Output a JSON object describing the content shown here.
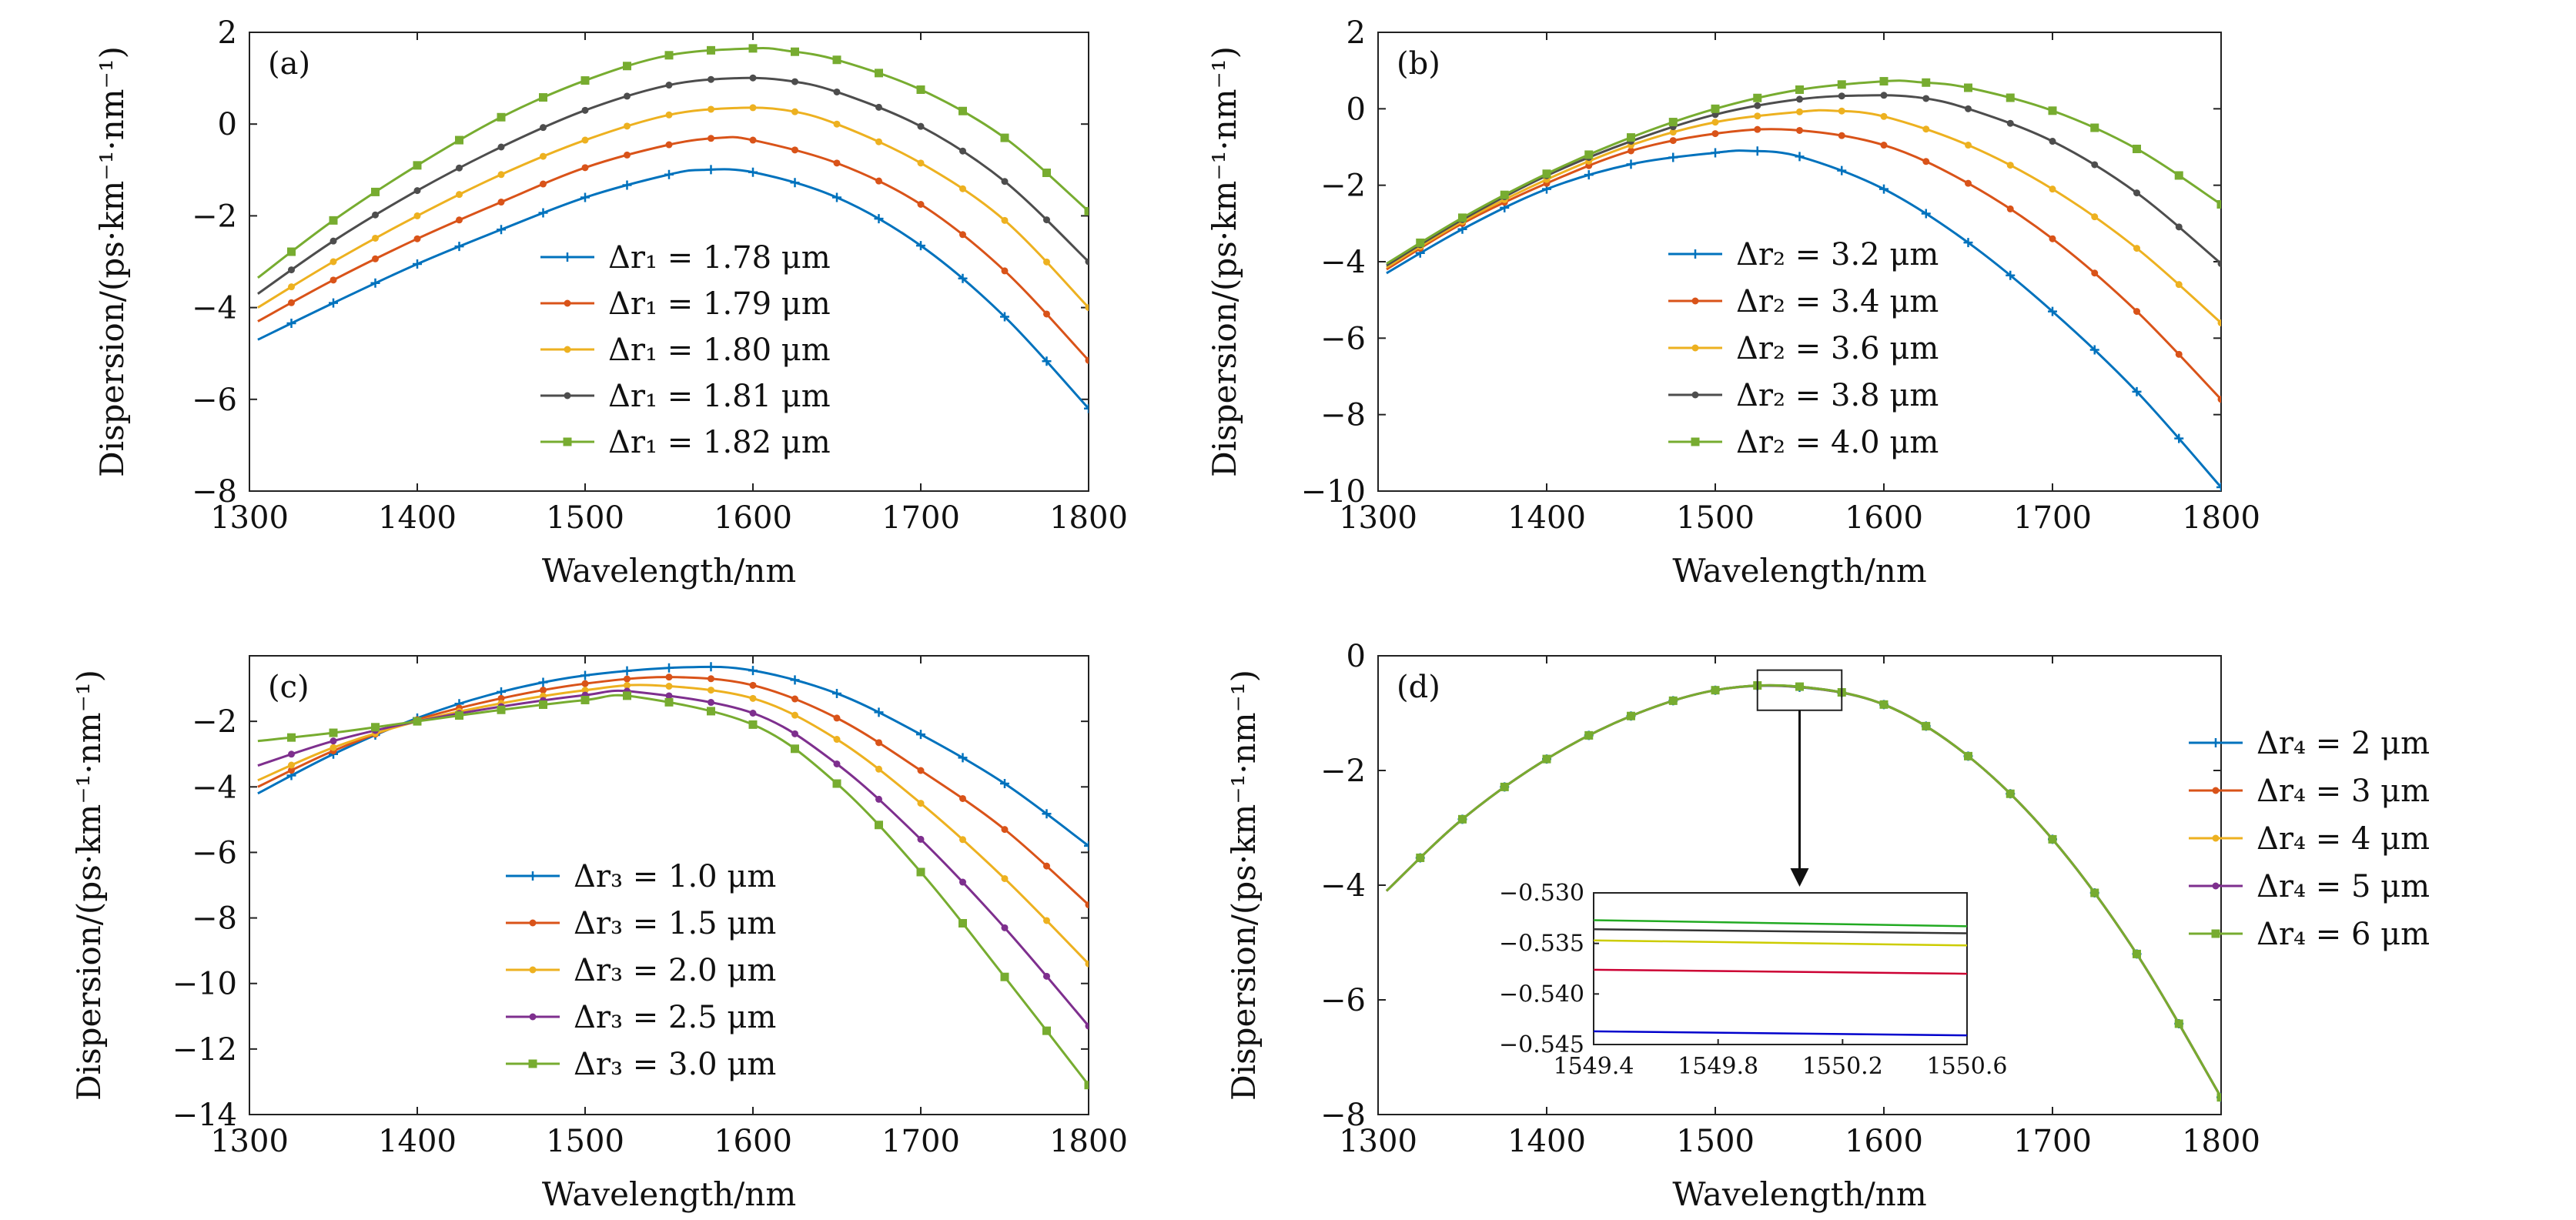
{
  "figure": {
    "background": "#ffffff"
  },
  "chart_data": [
    {
      "type": "line",
      "panel": "(a)",
      "xlabel": "Wavelength/nm",
      "ylabel": "Dispersion/(ps·km⁻¹·nm⁻¹)",
      "xlim": [
        1300,
        1800
      ],
      "ylim": [
        -8,
        2
      ],
      "xticks": [
        1300,
        1400,
        1500,
        1600,
        1700,
        1800
      ],
      "yticks": [
        -8,
        -6,
        -4,
        -2,
        0,
        2
      ],
      "ytick_labels": [
        "−8",
        "−6",
        "−4",
        "−2",
        "0",
        "2"
      ],
      "legend_position": "lower-center",
      "series": [
        {
          "name": "Δr₁ = 1.78 μm",
          "color": "#0072BD",
          "marker": "+",
          "x": [
            1305,
            1350,
            1400,
            1450,
            1500,
            1550,
            1570,
            1600,
            1650,
            1700,
            1750,
            1800
          ],
          "y": [
            -4.7,
            -3.9,
            -3.05,
            -2.3,
            -1.6,
            -1.1,
            -1.0,
            -1.05,
            -1.6,
            -2.65,
            -4.2,
            -6.2
          ]
        },
        {
          "name": "Δr₁ = 1.79 μm",
          "color": "#D95319",
          "marker": "•",
          "x": [
            1305,
            1350,
            1400,
            1450,
            1500,
            1550,
            1580,
            1600,
            1650,
            1700,
            1750,
            1800
          ],
          "y": [
            -4.3,
            -3.4,
            -2.5,
            -1.7,
            -0.95,
            -0.45,
            -0.3,
            -0.35,
            -0.85,
            -1.75,
            -3.2,
            -5.15
          ]
        },
        {
          "name": "Δr₁ = 1.80 μm",
          "color": "#EDB120",
          "marker": "•",
          "x": [
            1305,
            1350,
            1400,
            1450,
            1500,
            1550,
            1590,
            1620,
            1650,
            1700,
            1750,
            1800
          ],
          "y": [
            -4.0,
            -3.0,
            -2.0,
            -1.1,
            -0.35,
            0.2,
            0.35,
            0.3,
            0.0,
            -0.85,
            -2.1,
            -4.0
          ]
        },
        {
          "name": "Δr₁ = 1.81 μm",
          "color": "#4d4d4d",
          "marker": "•",
          "x": [
            1305,
            1350,
            1400,
            1450,
            1500,
            1550,
            1590,
            1620,
            1650,
            1700,
            1750,
            1800
          ],
          "y": [
            -3.7,
            -2.55,
            -1.45,
            -0.5,
            0.3,
            0.85,
            1.0,
            0.95,
            0.7,
            -0.05,
            -1.25,
            -3.0
          ]
        },
        {
          "name": "Δr₁ = 1.82 μm",
          "color": "#77AC30",
          "marker": "■",
          "x": [
            1305,
            1350,
            1400,
            1450,
            1500,
            1550,
            1600,
            1620,
            1650,
            1700,
            1750,
            1800
          ],
          "y": [
            -3.35,
            -2.1,
            -0.9,
            0.15,
            0.95,
            1.5,
            1.65,
            1.6,
            1.4,
            0.75,
            -0.3,
            -1.9
          ]
        }
      ]
    },
    {
      "type": "line",
      "panel": "(b)",
      "xlabel": "Wavelength/nm",
      "ylabel": "Dispersion/(ps·km⁻¹·nm⁻¹)",
      "xlim": [
        1300,
        1800
      ],
      "ylim": [
        -10,
        2
      ],
      "xticks": [
        1300,
        1400,
        1500,
        1600,
        1700,
        1800
      ],
      "yticks": [
        -10,
        -8,
        -6,
        -4,
        -2,
        0,
        2
      ],
      "ytick_labels": [
        "−10",
        "−8",
        "−6",
        "−4",
        "−2",
        "0",
        "2"
      ],
      "legend_position": "lower-center",
      "series": [
        {
          "name": "Δr₂ = 3.2 μm",
          "color": "#0072BD",
          "marker": "+",
          "x": [
            1305,
            1350,
            1400,
            1450,
            1500,
            1520,
            1550,
            1600,
            1650,
            1700,
            1750,
            1800
          ],
          "y": [
            -4.3,
            -3.15,
            -2.1,
            -1.45,
            -1.15,
            -1.1,
            -1.25,
            -2.1,
            -3.5,
            -5.3,
            -7.4,
            -9.9
          ]
        },
        {
          "name": "Δr₂ = 3.4 μm",
          "color": "#D95319",
          "marker": "•",
          "x": [
            1305,
            1350,
            1400,
            1450,
            1500,
            1545,
            1600,
            1650,
            1700,
            1750,
            1800
          ],
          "y": [
            -4.2,
            -3.0,
            -1.95,
            -1.1,
            -0.65,
            -0.55,
            -0.95,
            -1.95,
            -3.4,
            -5.3,
            -7.6
          ]
        },
        {
          "name": "Δr₂ = 3.6 μm",
          "color": "#EDB120",
          "marker": "•",
          "x": [
            1305,
            1350,
            1400,
            1450,
            1500,
            1550,
            1570,
            1600,
            1650,
            1700,
            1750,
            1800
          ],
          "y": [
            -4.15,
            -2.95,
            -1.85,
            -0.95,
            -0.35,
            -0.08,
            -0.05,
            -0.2,
            -0.95,
            -2.1,
            -3.65,
            -5.6
          ]
        },
        {
          "name": "Δr₂ = 3.8 μm",
          "color": "#4d4d4d",
          "marker": "•",
          "x": [
            1305,
            1350,
            1400,
            1450,
            1500,
            1550,
            1590,
            1620,
            1650,
            1700,
            1750,
            1800
          ],
          "y": [
            -4.1,
            -2.9,
            -1.75,
            -0.85,
            -0.15,
            0.25,
            0.35,
            0.3,
            0.0,
            -0.85,
            -2.2,
            -4.05
          ]
        },
        {
          "name": "Δr₂ = 4.0 μm",
          "color": "#77AC30",
          "marker": "■",
          "x": [
            1305,
            1350,
            1400,
            1450,
            1500,
            1550,
            1600,
            1620,
            1650,
            1700,
            1750,
            1800
          ],
          "y": [
            -4.05,
            -2.85,
            -1.7,
            -0.75,
            0.0,
            0.5,
            0.72,
            0.7,
            0.55,
            -0.05,
            -1.05,
            -2.5
          ]
        }
      ]
    },
    {
      "type": "line",
      "panel": "(c)",
      "xlabel": "Wavelength/nm",
      "ylabel": "Dispersion/(ps·km⁻¹·nm⁻¹)",
      "xlim": [
        1300,
        1800
      ],
      "ylim": [
        -14,
        0
      ],
      "xticks": [
        1300,
        1400,
        1500,
        1600,
        1700,
        1800
      ],
      "yticks": [
        -14,
        -12,
        -10,
        -8,
        -6,
        -4,
        -2
      ],
      "ytick_labels": [
        "−14",
        "−12",
        "−10",
        "−8",
        "−6",
        "−4",
        "−2"
      ],
      "legend_position": "lower-center",
      "series": [
        {
          "name": "Δr₃ = 1.0 μm",
          "color": "#0072BD",
          "marker": "+",
          "x": [
            1305,
            1350,
            1400,
            1450,
            1500,
            1560,
            1600,
            1650,
            1700,
            1750,
            1800
          ],
          "y": [
            -4.2,
            -3.0,
            -1.9,
            -1.1,
            -0.6,
            -0.35,
            -0.45,
            -1.15,
            -2.4,
            -3.9,
            -5.8
          ]
        },
        {
          "name": "Δr₃ = 1.5 μm",
          "color": "#D95319",
          "marker": "•",
          "x": [
            1305,
            1350,
            1400,
            1450,
            1500,
            1550,
            1600,
            1650,
            1700,
            1750,
            1800
          ],
          "y": [
            -4.0,
            -2.9,
            -1.95,
            -1.3,
            -0.85,
            -0.65,
            -0.9,
            -1.9,
            -3.5,
            -5.3,
            -7.6
          ]
        },
        {
          "name": "Δr₃ = 2.0 μm",
          "color": "#EDB120",
          "marker": "•",
          "x": [
            1305,
            1350,
            1400,
            1450,
            1500,
            1540,
            1600,
            1650,
            1700,
            1750,
            1800
          ],
          "y": [
            -3.8,
            -2.8,
            -2.0,
            -1.45,
            -1.05,
            -0.9,
            -1.3,
            -2.55,
            -4.5,
            -6.8,
            -9.4
          ]
        },
        {
          "name": "Δr₃ = 2.5 μm",
          "color": "#7E2F8E",
          "marker": "•",
          "x": [
            1305,
            1350,
            1400,
            1450,
            1500,
            1530,
            1600,
            1650,
            1700,
            1750,
            1800
          ],
          "y": [
            -3.35,
            -2.6,
            -2.0,
            -1.55,
            -1.2,
            -1.1,
            -1.75,
            -3.3,
            -5.6,
            -8.3,
            -11.3
          ]
        },
        {
          "name": "Δr₃ = 3.0 μm",
          "color": "#77AC30",
          "marker": "■",
          "x": [
            1305,
            1350,
            1400,
            1450,
            1500,
            1530,
            1600,
            1650,
            1700,
            1750,
            1800
          ],
          "y": [
            -2.6,
            -2.35,
            -2.0,
            -1.65,
            -1.35,
            -1.25,
            -2.1,
            -3.9,
            -6.6,
            -9.8,
            -13.1
          ]
        }
      ]
    },
    {
      "type": "line",
      "panel": "(d)",
      "xlabel": "Wavelength/nm",
      "ylabel": "Dispersion/(ps·km⁻¹·nm⁻¹)",
      "xlim": [
        1300,
        1800
      ],
      "ylim": [
        -8,
        0
      ],
      "xticks": [
        1300,
        1400,
        1500,
        1600,
        1700,
        1800
      ],
      "yticks": [
        -8,
        -6,
        -4,
        -2,
        0
      ],
      "ytick_labels": [
        "−8",
        "−6",
        "−4",
        "−2",
        "0"
      ],
      "legend_position": "outside-right",
      "series": [
        {
          "name": "Δr₄ = 2 μm",
          "color": "#0072BD",
          "marker": "+",
          "x": [
            1305,
            1350,
            1400,
            1450,
            1500,
            1548,
            1600,
            1650,
            1700,
            1750,
            1800
          ],
          "y": [
            -4.1,
            -2.85,
            -1.8,
            -1.05,
            -0.6,
            -0.544,
            -0.85,
            -1.75,
            -3.2,
            -5.2,
            -7.7
          ]
        },
        {
          "name": "Δr₄ = 3 μm",
          "color": "#D95319",
          "marker": "•",
          "x": [
            1305,
            1350,
            1400,
            1450,
            1500,
            1548,
            1600,
            1650,
            1700,
            1750,
            1800
          ],
          "y": [
            -4.1,
            -2.85,
            -1.8,
            -1.05,
            -0.6,
            -0.538,
            -0.85,
            -1.75,
            -3.2,
            -5.2,
            -7.7
          ]
        },
        {
          "name": "Δr₄ = 4 μm",
          "color": "#EDB120",
          "marker": "•",
          "x": [
            1305,
            1350,
            1400,
            1450,
            1500,
            1548,
            1600,
            1650,
            1700,
            1750,
            1800
          ],
          "y": [
            -4.1,
            -2.85,
            -1.8,
            -1.05,
            -0.6,
            -0.535,
            -0.85,
            -1.75,
            -3.2,
            -5.2,
            -7.7
          ]
        },
        {
          "name": "Δr₄ = 5 μm",
          "color": "#7E2F8E",
          "marker": "•",
          "x": [
            1305,
            1350,
            1400,
            1450,
            1500,
            1548,
            1600,
            1650,
            1700,
            1750,
            1800
          ],
          "y": [
            -4.1,
            -2.85,
            -1.8,
            -1.05,
            -0.6,
            -0.534,
            -0.85,
            -1.75,
            -3.2,
            -5.2,
            -7.7
          ]
        },
        {
          "name": "Δr₄ = 6 μm",
          "color": "#77AC30",
          "marker": "■",
          "x": [
            1305,
            1350,
            1400,
            1450,
            1500,
            1548,
            1600,
            1650,
            1700,
            1750,
            1800
          ],
          "y": [
            -4.1,
            -2.85,
            -1.8,
            -1.05,
            -0.6,
            -0.533,
            -0.85,
            -1.75,
            -3.2,
            -5.2,
            -7.7
          ]
        }
      ],
      "zoom_box": {
        "x": [
          1525,
          1575
        ],
        "y": [
          -0.95,
          -0.25
        ]
      },
      "inset": {
        "xlim": [
          1549.4,
          1550.6
        ],
        "ylim": [
          -0.545,
          -0.53
        ],
        "xticks": [
          1549.4,
          1549.8,
          1550.2,
          1550.6
        ],
        "yticks": [
          -0.545,
          -0.54,
          -0.535,
          -0.53
        ],
        "ytick_labels": [
          "−0.545",
          "−0.540",
          "−0.535",
          "−0.530"
        ],
        "series": [
          {
            "color": "#0000cc",
            "x": [
              1549.4,
              1550.6
            ],
            "y": [
              -0.5437,
              -0.5441
            ]
          },
          {
            "color": "#cc0033",
            "x": [
              1549.4,
              1550.6
            ],
            "y": [
              -0.5376,
              -0.538
            ]
          },
          {
            "color": "#cccc00",
            "x": [
              1549.4,
              1550.6
            ],
            "y": [
              -0.5347,
              -0.5352
            ]
          },
          {
            "color": "#333333",
            "x": [
              1549.4,
              1550.6
            ],
            "y": [
              -0.5336,
              -0.534
            ]
          },
          {
            "color": "#22aa22",
            "x": [
              1549.4,
              1550.6
            ],
            "y": [
              -0.5327,
              -0.5333
            ]
          }
        ]
      }
    }
  ]
}
